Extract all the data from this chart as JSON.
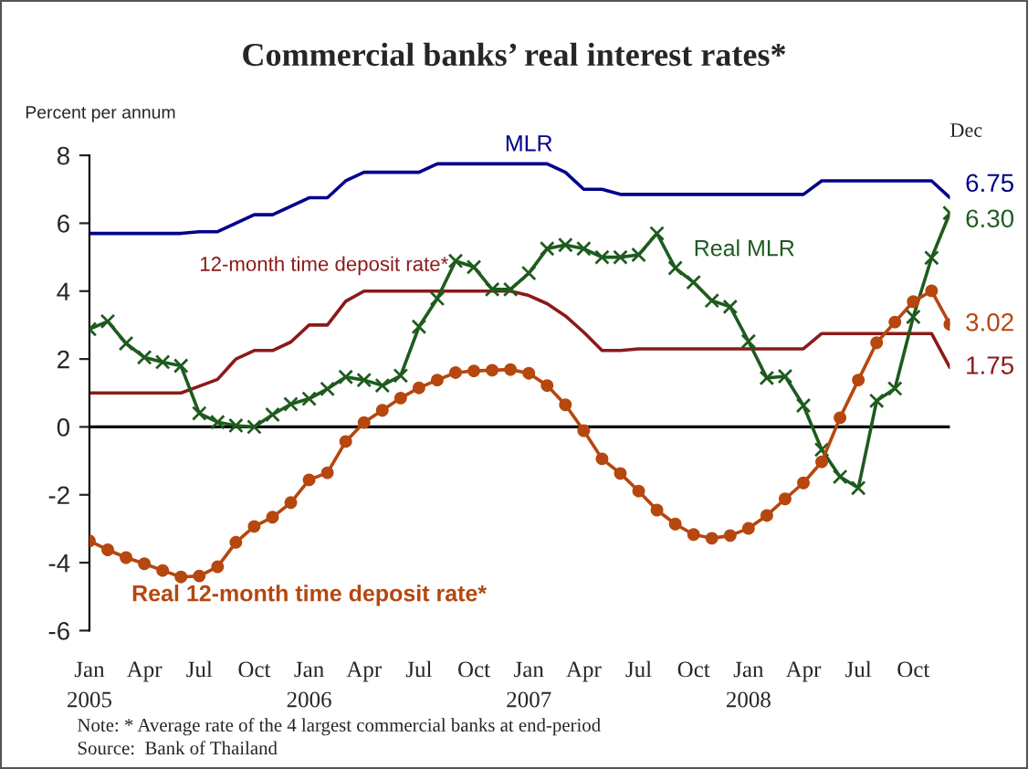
{
  "chart_data": {
    "type": "line",
    "title": "Commercial banks’ real interest rates*",
    "ylabel": "Percent per annum",
    "categories": [
      "Jan\n2005",
      null,
      null,
      "Apr",
      null,
      null,
      "Jul",
      null,
      null,
      "Oct",
      null,
      null,
      "Jan\n2006",
      null,
      null,
      "Apr",
      null,
      null,
      "Jul",
      null,
      null,
      "Oct",
      null,
      null,
      "Jan\n2007",
      null,
      null,
      "Apr",
      null,
      null,
      "Jul",
      null,
      null,
      "Oct",
      null,
      null,
      "Jan\n2008",
      null,
      null,
      "Apr",
      null,
      null,
      "Jul",
      null,
      null,
      "Oct",
      null,
      null
    ],
    "series": [
      {
        "name": "MLR",
        "color": "#00008b",
        "marker": "none",
        "values": [
          5.7,
          5.7,
          5.7,
          5.7,
          5.7,
          5.7,
          5.75,
          5.75,
          6.0,
          6.25,
          6.25,
          6.5,
          6.75,
          6.75,
          7.25,
          7.5,
          7.5,
          7.5,
          7.5,
          7.75,
          7.75,
          7.75,
          7.75,
          7.75,
          7.75,
          7.75,
          7.5,
          7.0,
          7.0,
          6.85,
          6.85,
          6.85,
          6.85,
          6.85,
          6.85,
          6.85,
          6.85,
          6.85,
          6.85,
          6.85,
          7.25,
          7.25,
          7.25,
          7.25,
          7.25,
          7.25,
          7.25,
          6.75
        ],
        "value_labels": [
          null,
          null,
          null,
          null,
          null,
          null,
          null,
          null,
          null,
          null,
          null,
          null,
          null,
          null,
          null,
          null,
          null,
          null,
          null,
          null,
          null,
          null,
          null,
          null,
          null,
          null,
          null,
          null,
          null,
          null,
          null,
          null,
          null,
          null,
          null,
          null,
          null,
          null,
          null,
          null,
          null,
          null,
          null,
          null,
          null,
          null,
          null,
          "6.75"
        ]
      },
      {
        "name": "Real MLR",
        "color": "#1e5b1e",
        "marker": "cross",
        "values": [
          2.88,
          3.11,
          2.46,
          2.05,
          1.91,
          1.8,
          0.4,
          0.14,
          0.04,
          0.0,
          0.36,
          0.67,
          0.83,
          1.12,
          1.47,
          1.38,
          1.22,
          1.51,
          2.95,
          3.78,
          4.89,
          4.71,
          4.05,
          4.05,
          4.53,
          5.25,
          5.36,
          5.25,
          5.0,
          5.0,
          5.07,
          5.7,
          4.68,
          4.26,
          3.72,
          3.54,
          2.52,
          1.44,
          1.49,
          0.63,
          -0.67,
          -1.47,
          -1.8,
          0.77,
          1.13,
          3.24,
          4.98,
          6.3
        ],
        "value_labels": [
          null,
          null,
          null,
          null,
          null,
          null,
          null,
          null,
          null,
          null,
          null,
          null,
          null,
          null,
          null,
          null,
          null,
          null,
          null,
          null,
          null,
          null,
          null,
          null,
          null,
          null,
          null,
          null,
          null,
          null,
          null,
          null,
          null,
          null,
          null,
          null,
          null,
          null,
          null,
          null,
          null,
          null,
          null,
          null,
          null,
          null,
          null,
          "6.30"
        ]
      },
      {
        "name": "12-month time deposit rate*",
        "color": "#8b1a1a",
        "marker": "none",
        "values": [
          1.0,
          1.0,
          1.0,
          1.0,
          1.0,
          1.0,
          1.2,
          1.4,
          2.0,
          2.25,
          2.25,
          2.5,
          3.0,
          3.0,
          3.7,
          4.0,
          4.0,
          4.0,
          4.0,
          4.0,
          4.0,
          4.0,
          4.0,
          4.0,
          3.87,
          3.63,
          3.27,
          2.79,
          2.25,
          2.25,
          2.3,
          2.3,
          2.3,
          2.3,
          2.3,
          2.3,
          2.3,
          2.3,
          2.3,
          2.3,
          2.75,
          2.75,
          2.75,
          2.75,
          2.75,
          2.75,
          2.75,
          1.75
        ],
        "value_labels": [
          null,
          null,
          null,
          null,
          null,
          null,
          null,
          null,
          null,
          null,
          null,
          null,
          null,
          null,
          null,
          null,
          null,
          null,
          null,
          null,
          null,
          null,
          null,
          null,
          null,
          null,
          null,
          null,
          null,
          null,
          null,
          null,
          null,
          null,
          null,
          null,
          null,
          null,
          null,
          null,
          null,
          null,
          null,
          null,
          null,
          null,
          null,
          "1.75"
        ]
      },
      {
        "name": "Real 12-month time deposit rate*",
        "color": "#b5470f",
        "marker": "circle",
        "values": [
          -3.36,
          -3.62,
          -3.85,
          -4.03,
          -4.23,
          -4.42,
          -4.39,
          -4.12,
          -3.4,
          -2.93,
          -2.66,
          -2.23,
          -1.56,
          -1.35,
          -0.43,
          0.13,
          0.49,
          0.85,
          1.15,
          1.38,
          1.6,
          1.65,
          1.67,
          1.69,
          1.58,
          1.22,
          0.65,
          -0.11,
          -0.94,
          -1.37,
          -1.89,
          -2.45,
          -2.86,
          -3.17,
          -3.28,
          -3.2,
          -2.99,
          -2.61,
          -2.12,
          -1.65,
          -1.03,
          0.27,
          1.38,
          2.48,
          3.09,
          3.69,
          4.01,
          3.02
        ],
        "value_labels": [
          null,
          null,
          null,
          null,
          null,
          null,
          null,
          null,
          null,
          null,
          null,
          null,
          null,
          null,
          null,
          null,
          null,
          null,
          null,
          null,
          null,
          null,
          null,
          null,
          null,
          null,
          null,
          null,
          null,
          null,
          null,
          null,
          null,
          null,
          null,
          null,
          null,
          null,
          null,
          null,
          null,
          null,
          null,
          null,
          null,
          null,
          null,
          "3.02"
        ]
      }
    ],
    "ylim": [
      -6,
      8
    ],
    "yticks": [
      -6,
      -4,
      -2,
      0,
      2,
      4,
      6,
      8
    ],
    "grid": false,
    "legend": false,
    "ref_lines": [
      {
        "axis": "y",
        "value": 0,
        "color": "#000000"
      }
    ],
    "annotations": [
      "Dec",
      "Note: * Average rate of the 4 largest commercial banks at end-period",
      "Source:  Bank of Thailand"
    ]
  }
}
